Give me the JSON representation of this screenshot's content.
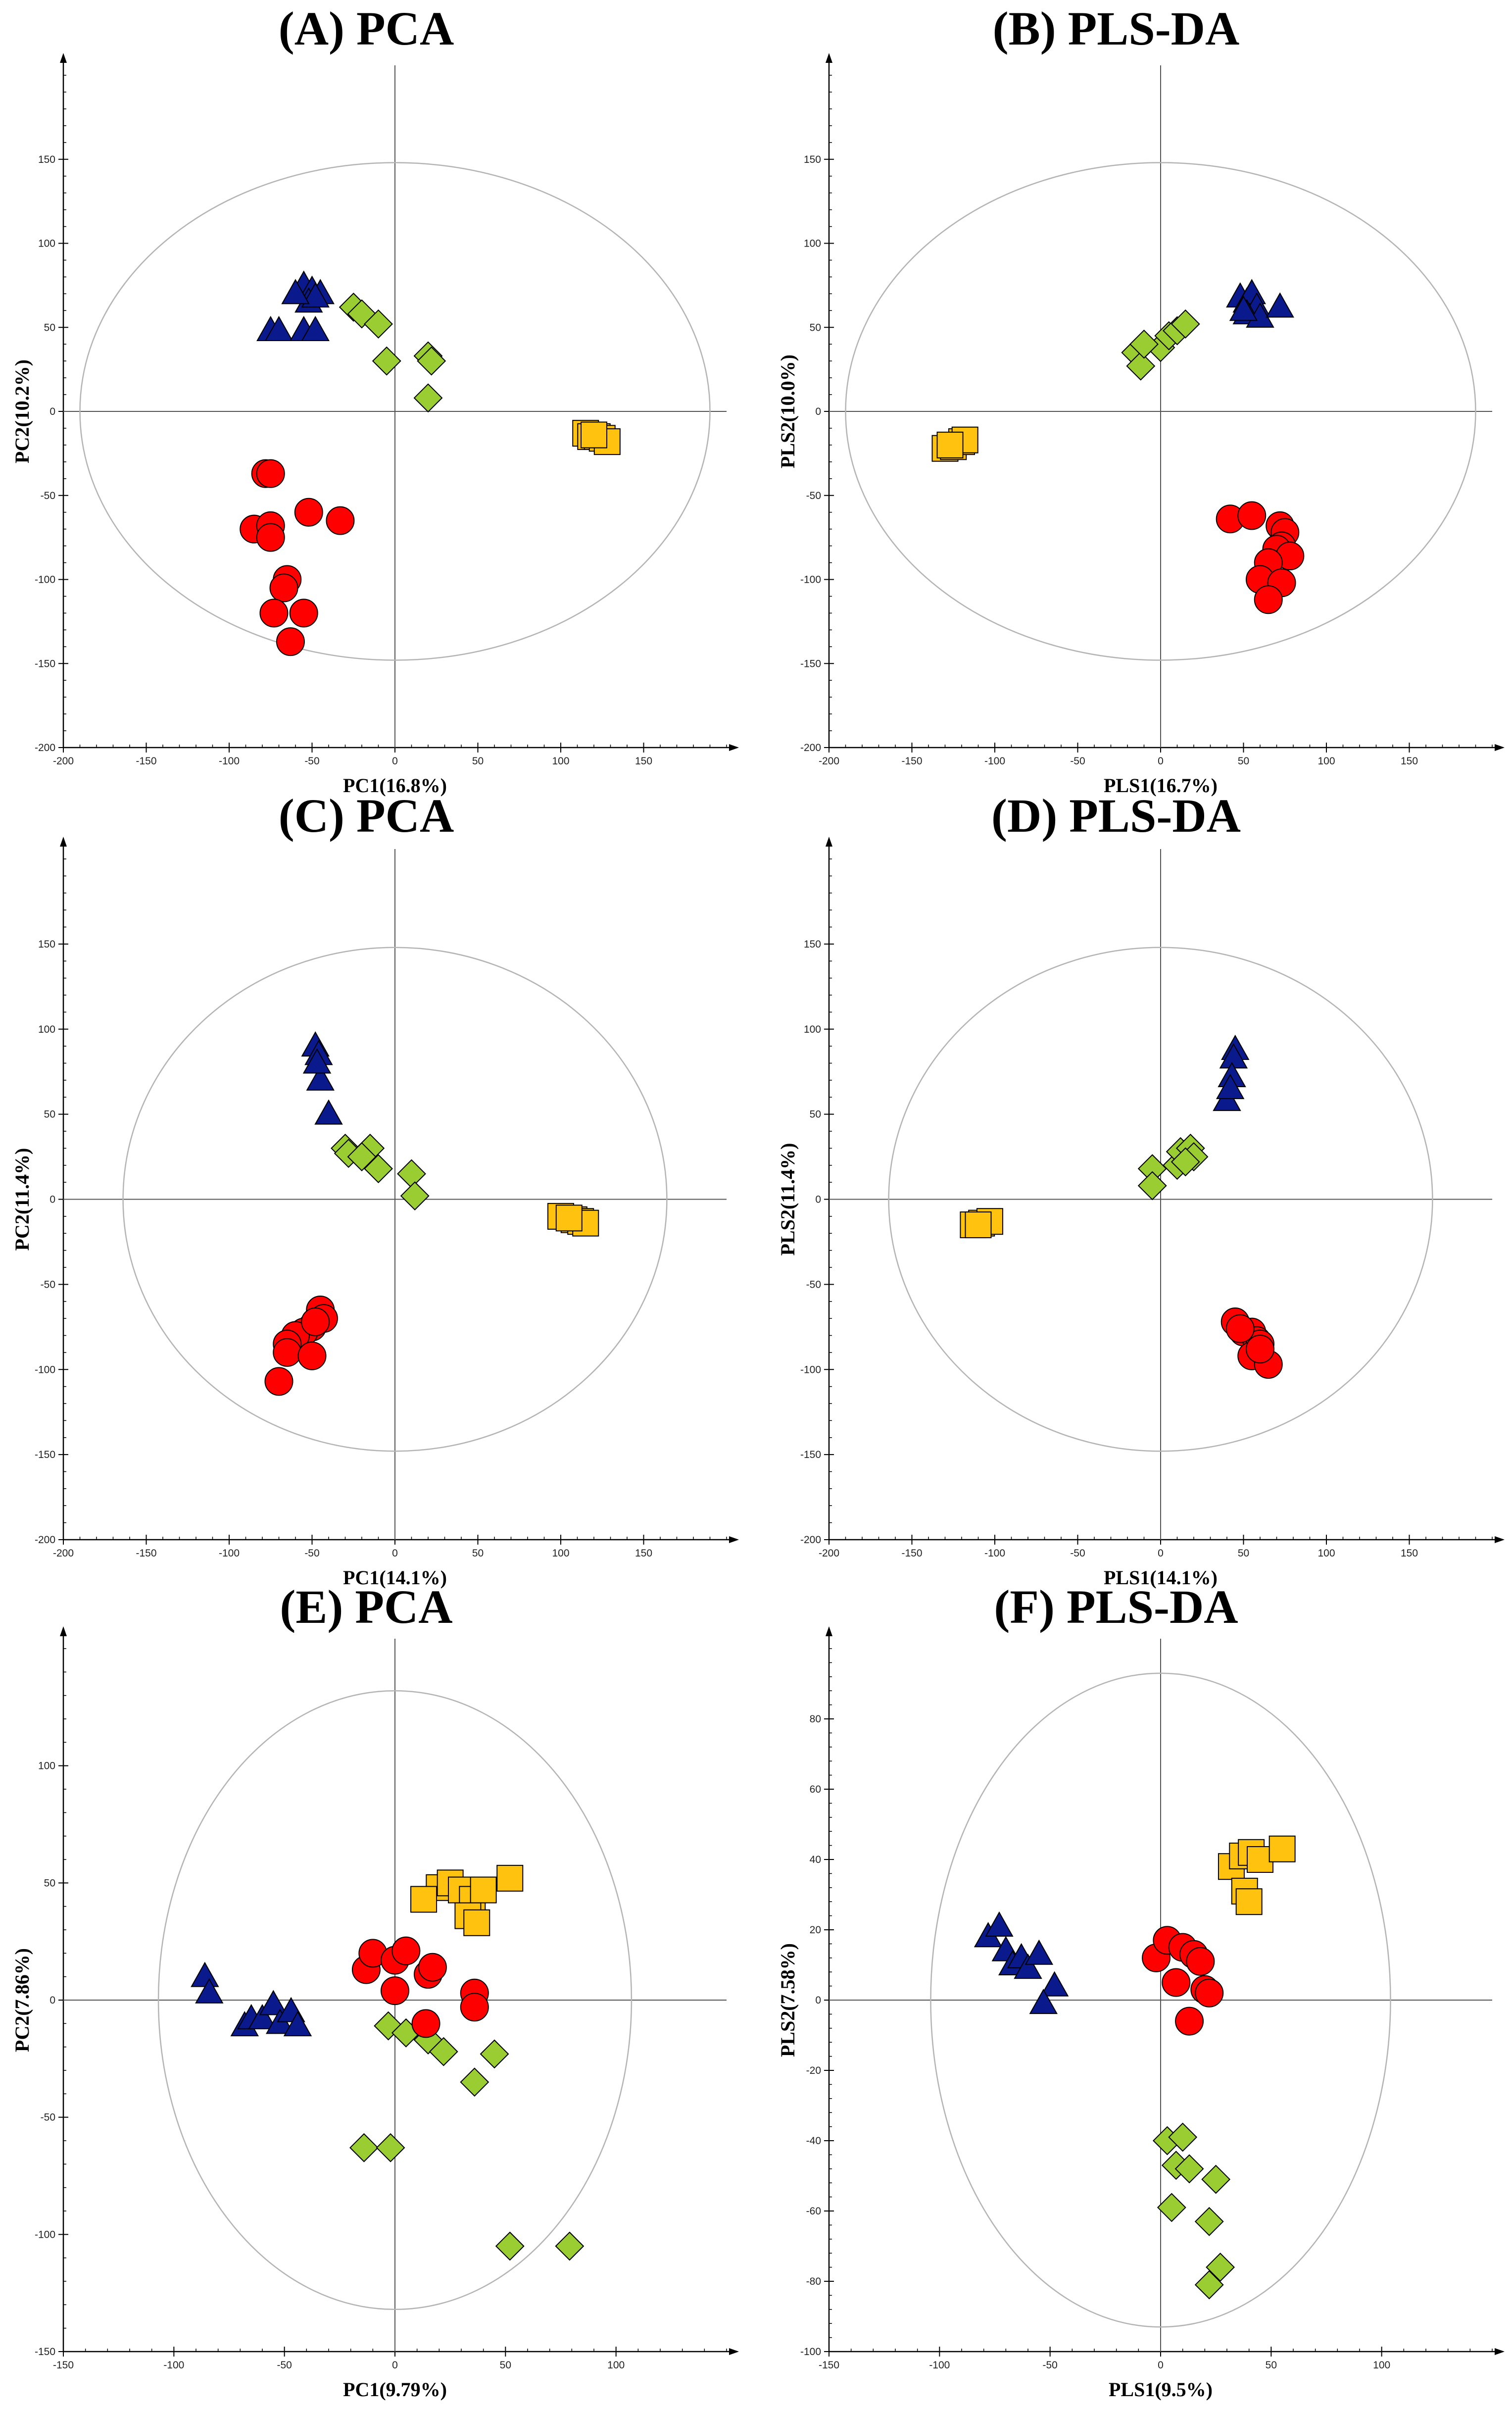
{
  "figure": {
    "marker_colors": {
      "triangle": "#0a1a8c",
      "diamond": "#9acd32",
      "square": "#ffc20e",
      "circle": "#ff0000"
    },
    "ellipse_color": "#b4b4b4"
  },
  "chart_data": [
    {
      "type": "scatter",
      "title": "(A) PCA",
      "xlabel": "PC1(16.8%)",
      "ylabel": "PC2(10.2%)",
      "xlim": [
        -200,
        200
      ],
      "ylim": [
        -200,
        200
      ],
      "xticks": [
        -200,
        -150,
        -100,
        -50,
        0,
        50,
        100,
        150
      ],
      "yticks": [
        -200,
        -150,
        -100,
        -50,
        0,
        50,
        100,
        150
      ],
      "ellipse": {
        "rx": 190,
        "ry": 148
      },
      "series": [
        {
          "name": "triangle",
          "points": [
            [
              -55,
              75
            ],
            [
              -50,
              72
            ],
            [
              -45,
              70
            ],
            [
              -52,
              65
            ],
            [
              -48,
              68
            ],
            [
              -75,
              48
            ],
            [
              -70,
              48
            ],
            [
              -55,
              48
            ],
            [
              -48,
              48
            ],
            [
              -60,
              70
            ]
          ]
        },
        {
          "name": "diamond",
          "points": [
            [
              -25,
              62
            ],
            [
              -20,
              58
            ],
            [
              -10,
              52
            ],
            [
              -5,
              30
            ],
            [
              20,
              33
            ],
            [
              22,
              30
            ],
            [
              20,
              8
            ]
          ]
        },
        {
          "name": "square",
          "points": [
            [
              115,
              -13
            ],
            [
              118,
              -15
            ],
            [
              122,
              -15
            ],
            [
              125,
              -16
            ],
            [
              128,
              -18
            ],
            [
              120,
              -14
            ]
          ]
        },
        {
          "name": "circle",
          "points": [
            [
              -78,
              -37
            ],
            [
              -75,
              -37
            ],
            [
              -52,
              -60
            ],
            [
              -33,
              -65
            ],
            [
              -85,
              -70
            ],
            [
              -75,
              -68
            ],
            [
              -75,
              -75
            ],
            [
              -65,
              -100
            ],
            [
              -67,
              -105
            ],
            [
              -73,
              -120
            ],
            [
              -55,
              -120
            ],
            [
              -63,
              -137
            ]
          ]
        }
      ]
    },
    {
      "type": "scatter",
      "title": "(B) PLS-DA",
      "xlabel": "PLS1(16.7%)",
      "ylabel": "PLS2(10.0%)",
      "xlim": [
        -200,
        200
      ],
      "ylim": [
        -200,
        200
      ],
      "xticks": [
        -200,
        -150,
        -100,
        -50,
        0,
        50,
        100,
        150
      ],
      "yticks": [
        -200,
        -150,
        -100,
        -50,
        0,
        50,
        100,
        150
      ],
      "ellipse": {
        "rx": 190,
        "ry": 148
      },
      "series": [
        {
          "name": "triangle",
          "points": [
            [
              48,
              68
            ],
            [
              52,
              65
            ],
            [
              55,
              70
            ],
            [
              58,
              62
            ],
            [
              52,
              58
            ],
            [
              60,
              56
            ],
            [
              72,
              62
            ],
            [
              50,
              60
            ]
          ]
        },
        {
          "name": "diamond",
          "points": [
            [
              -15,
              35
            ],
            [
              -12,
              27
            ],
            [
              0,
              38
            ],
            [
              5,
              45
            ],
            [
              10,
              48
            ],
            [
              15,
              52
            ],
            [
              -10,
              40
            ]
          ]
        },
        {
          "name": "square",
          "points": [
            [
              -130,
              -22
            ],
            [
              -125,
              -21
            ],
            [
              -120,
              -18
            ],
            [
              -118,
              -17
            ],
            [
              -127,
              -20
            ]
          ]
        },
        {
          "name": "circle",
          "points": [
            [
              42,
              -64
            ],
            [
              55,
              -62
            ],
            [
              72,
              -68
            ],
            [
              75,
              -72
            ],
            [
              73,
              -80
            ],
            [
              70,
              -82
            ],
            [
              78,
              -86
            ],
            [
              65,
              -90
            ],
            [
              60,
              -100
            ],
            [
              73,
              -102
            ],
            [
              65,
              -112
            ]
          ]
        }
      ]
    },
    {
      "type": "scatter",
      "title": "(C) PCA",
      "xlabel": "PC1(14.1%)",
      "ylabel": "PC2(11.4%)",
      "xlim": [
        -200,
        200
      ],
      "ylim": [
        -200,
        200
      ],
      "xticks": [
        -200,
        -150,
        -100,
        -50,
        0,
        50,
        100,
        150
      ],
      "yticks": [
        -200,
        -150,
        -100,
        -50,
        0,
        50,
        100,
        150
      ],
      "ellipse": {
        "rx": 164,
        "ry": 148
      },
      "series": [
        {
          "name": "triangle",
          "points": [
            [
              -48,
              90
            ],
            [
              -46,
              85
            ],
            [
              -45,
              70
            ],
            [
              -40,
              50
            ],
            [
              -47,
              80
            ]
          ]
        },
        {
          "name": "diamond",
          "points": [
            [
              -30,
              30
            ],
            [
              -28,
              27
            ],
            [
              -15,
              30
            ],
            [
              -10,
              18
            ],
            [
              10,
              15
            ],
            [
              12,
              2
            ],
            [
              -20,
              25
            ]
          ]
        },
        {
          "name": "square",
          "points": [
            [
              100,
              -10
            ],
            [
              108,
              -12
            ],
            [
              112,
              -13
            ],
            [
              115,
              -14
            ],
            [
              105,
              -11
            ]
          ]
        },
        {
          "name": "circle",
          "points": [
            [
              -45,
              -65
            ],
            [
              -43,
              -70
            ],
            [
              -50,
              -75
            ],
            [
              -55,
              -78
            ],
            [
              -60,
              -80
            ],
            [
              -65,
              -85
            ],
            [
              -65,
              -90
            ],
            [
              -50,
              -92
            ],
            [
              -70,
              -107
            ],
            [
              -48,
              -72
            ]
          ]
        }
      ]
    },
    {
      "type": "scatter",
      "title": "(D) PLS-DA",
      "xlabel": "PLS1(14.1%)",
      "ylabel": "PLS2(11.4%)",
      "xlim": [
        -200,
        200
      ],
      "ylim": [
        -200,
        200
      ],
      "xticks": [
        -200,
        -150,
        -100,
        -50,
        0,
        50,
        100,
        150
      ],
      "yticks": [
        -200,
        -150,
        -100,
        -50,
        0,
        50,
        100,
        150
      ],
      "ellipse": {
        "rx": 164,
        "ry": 148
      },
      "series": [
        {
          "name": "triangle",
          "points": [
            [
              45,
              88
            ],
            [
              44,
              83
            ],
            [
              43,
              72
            ],
            [
              40,
              58
            ],
            [
              42,
              65
            ]
          ]
        },
        {
          "name": "diamond",
          "points": [
            [
              -5,
              18
            ],
            [
              -5,
              8
            ],
            [
              10,
              20
            ],
            [
              12,
              28
            ],
            [
              18,
              30
            ],
            [
              20,
              25
            ],
            [
              15,
              22
            ]
          ]
        },
        {
          "name": "square",
          "points": [
            [
              -113,
              -15
            ],
            [
              -108,
              -14
            ],
            [
              -103,
              -13
            ],
            [
              -110,
              -15
            ]
          ]
        },
        {
          "name": "circle",
          "points": [
            [
              45,
              -72
            ],
            [
              50,
              -78
            ],
            [
              55,
              -78
            ],
            [
              58,
              -83
            ],
            [
              60,
              -85
            ],
            [
              55,
              -92
            ],
            [
              65,
              -97
            ],
            [
              60,
              -88
            ],
            [
              48,
              -76
            ]
          ]
        }
      ]
    },
    {
      "type": "scatter",
      "title": "(E) PCA",
      "xlabel": "PC1(9.79%)",
      "ylabel": "PC2(7.86%)",
      "xlim": [
        -150,
        150
      ],
      "ylim": [
        -150,
        150
      ],
      "xticks": [
        -150,
        -100,
        -50,
        0,
        50,
        100
      ],
      "yticks": [
        -150,
        -100,
        -50,
        0,
        50,
        100
      ],
      "ellipse": {
        "rx": 107,
        "ry": 132
      },
      "series": [
        {
          "name": "triangle",
          "points": [
            [
              -86,
              10
            ],
            [
              -84,
              3
            ],
            [
              -68,
              -11
            ],
            [
              -65,
              -8
            ],
            [
              -60,
              -8
            ],
            [
              -55,
              -2
            ],
            [
              -52,
              -10
            ],
            [
              -47,
              -5
            ],
            [
              -44,
              -11
            ]
          ]
        },
        {
          "name": "diamond",
          "points": [
            [
              -3,
              -11
            ],
            [
              5,
              -14
            ],
            [
              15,
              -17
            ],
            [
              22,
              -22
            ],
            [
              45,
              -23
            ],
            [
              36,
              -35
            ],
            [
              -14,
              -63
            ],
            [
              -2,
              -63
            ],
            [
              52,
              -105
            ],
            [
              79,
              -105
            ]
          ]
        },
        {
          "name": "square",
          "points": [
            [
              20,
              48
            ],
            [
              25,
              50
            ],
            [
              30,
              47
            ],
            [
              35,
              43
            ],
            [
              40,
              47
            ],
            [
              52,
              52
            ],
            [
              33,
              36
            ],
            [
              37,
              33
            ],
            [
              13,
              43
            ]
          ]
        },
        {
          "name": "circle",
          "points": [
            [
              -13,
              13
            ],
            [
              -10,
              20
            ],
            [
              0,
              17
            ],
            [
              5,
              21
            ],
            [
              15,
              11
            ],
            [
              17,
              14
            ],
            [
              36,
              3
            ],
            [
              36,
              -3
            ],
            [
              0,
              4
            ],
            [
              14,
              -10
            ]
          ]
        }
      ]
    },
    {
      "type": "scatter",
      "title": "(F) PLS-DA",
      "xlabel": "PLS1(9.5%)",
      "ylabel": "PLS2(7.58%)",
      "xlim": [
        -150,
        150
      ],
      "ylim": [
        -100,
        100
      ],
      "xticks": [
        -150,
        -100,
        -50,
        0,
        50,
        100
      ],
      "yticks": [
        -100,
        -80,
        -60,
        -40,
        -20,
        0,
        20,
        40,
        60,
        80
      ],
      "ellipse": {
        "rx": 104,
        "ry": 93
      },
      "series": [
        {
          "name": "triangle",
          "points": [
            [
              -78,
              18
            ],
            [
              -73,
              21
            ],
            [
              -70,
              14
            ],
            [
              -67,
              10
            ],
            [
              -63,
              12
            ],
            [
              -60,
              9
            ],
            [
              -55,
              13
            ],
            [
              -48,
              4
            ],
            [
              -53,
              -1
            ]
          ]
        },
        {
          "name": "diamond",
          "points": [
            [
              3,
              -40
            ],
            [
              10,
              -39
            ],
            [
              7,
              -47
            ],
            [
              13,
              -48
            ],
            [
              5,
              -59
            ],
            [
              25,
              -51
            ],
            [
              22,
              -63
            ],
            [
              27,
              -76
            ],
            [
              22,
              -81
            ]
          ]
        },
        {
          "name": "square",
          "points": [
            [
              32,
              38
            ],
            [
              37,
              41
            ],
            [
              41,
              42
            ],
            [
              45,
              40
            ],
            [
              55,
              43
            ],
            [
              38,
              31
            ],
            [
              40,
              28
            ]
          ]
        },
        {
          "name": "circle",
          "points": [
            [
              -2,
              12
            ],
            [
              3,
              17
            ],
            [
              10,
              15
            ],
            [
              15,
              13
            ],
            [
              18,
              11
            ],
            [
              7,
              5
            ],
            [
              20,
              3
            ],
            [
              22,
              2
            ],
            [
              13,
              -6
            ]
          ]
        }
      ]
    }
  ]
}
